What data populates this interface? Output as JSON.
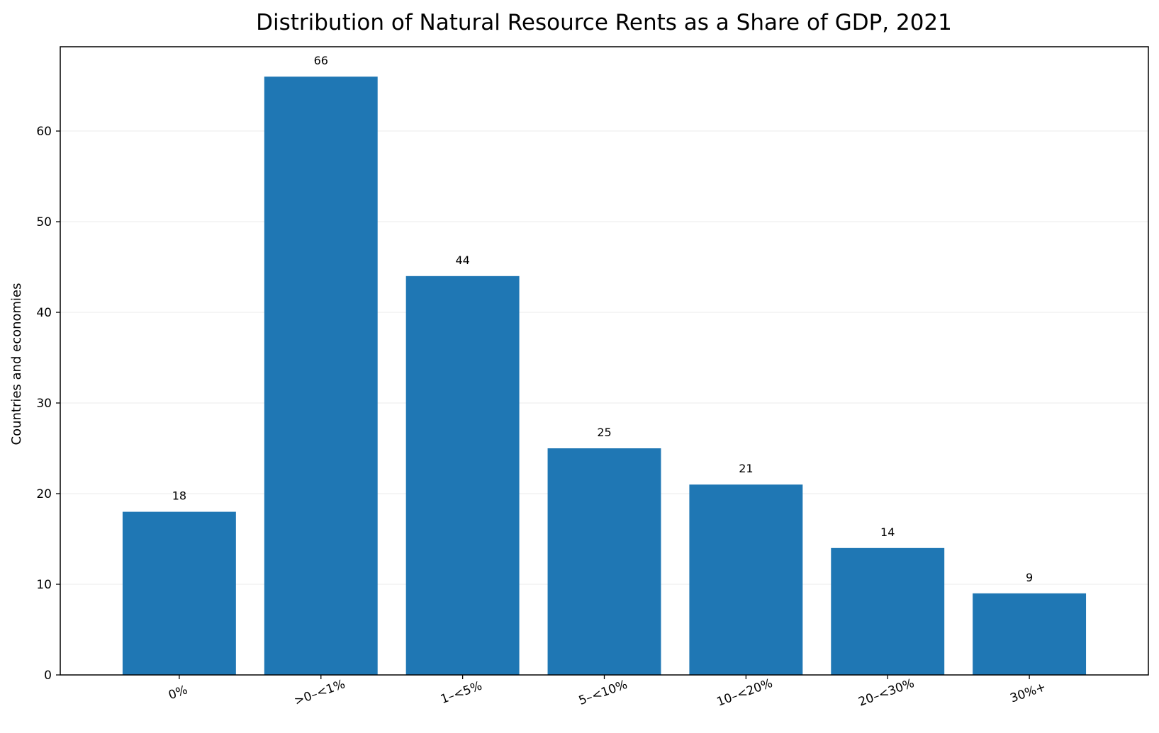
{
  "chart_data": {
    "type": "bar",
    "title": "Distribution of Natural Resource Rents as a Share of GDP, 2021",
    "xlabel": "",
    "ylabel": "Countries and economies",
    "categories": [
      "0%",
      ">0–<1%",
      "1–<5%",
      "5–<10%",
      "10–<20%",
      "20–<30%",
      "30%+"
    ],
    "values": [
      18,
      66,
      44,
      25,
      21,
      14,
      9
    ],
    "ylim": [
      0,
      69.3
    ],
    "yticks": [
      0,
      10,
      20,
      30,
      40,
      50,
      60
    ],
    "grid": "horizontal",
    "legend": "none",
    "bar_color": "#1f77b4",
    "grid_color": "#ebebeb",
    "axis_color": "#000000"
  }
}
